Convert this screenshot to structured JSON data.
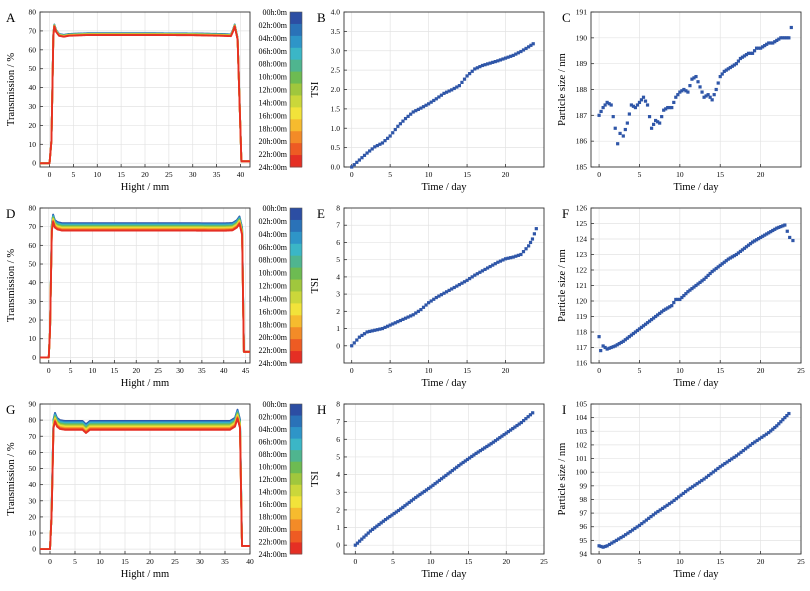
{
  "figure": {
    "panels": [
      "A",
      "B",
      "C",
      "D",
      "E",
      "F",
      "G",
      "H",
      "I"
    ],
    "colorbar_labels": [
      "00h:0m",
      "02h:00m",
      "04h:00m",
      "06h:00m",
      "08h:00m",
      "10h:00m",
      "12h:00m",
      "14h:00m",
      "16h:00m",
      "18h:00m",
      "20h:00m",
      "22h:00m",
      "24h:00m"
    ],
    "colorbar_colors": [
      "#2c4ea3",
      "#2a72b8",
      "#2e95c8",
      "#3bb6c6",
      "#4fb58f",
      "#6dbb52",
      "#a0c73d",
      "#cbd73a",
      "#f2e33a",
      "#f6bb2e",
      "#f38b27",
      "#ee5b23",
      "#e52f24"
    ]
  },
  "chart_data": [
    {
      "panel": "A",
      "type": "line",
      "xlabel": "Hight / mm",
      "ylabel": "Transmission / %",
      "xlim": [
        -2,
        42
      ],
      "ylim": [
        -2,
        80
      ],
      "xticks": [
        0,
        5,
        10,
        15,
        20,
        25,
        30,
        35,
        40
      ],
      "yticks": [
        0,
        10,
        20,
        30,
        40,
        50,
        60,
        70,
        80
      ],
      "profile": {
        "x": [
          0,
          0.4,
          0.8,
          1.0,
          1.4,
          2,
          3,
          4,
          8,
          15,
          22,
          30,
          36,
          38,
          38.4,
          38.8,
          39.4,
          40.2,
          42
        ],
        "y": [
          0,
          12,
          68,
          73,
          70,
          68,
          67.5,
          68,
          68.4,
          68.4,
          68.4,
          68.3,
          68,
          67.8,
          70,
          73,
          66,
          1,
          1
        ]
      },
      "series": [
        {
          "name": "00h:0m",
          "offset": 0.4
        },
        {
          "name": "24h:00m",
          "offset": -0.6
        }
      ]
    },
    {
      "panel": "B",
      "type": "scatter",
      "xlabel": "Time / day",
      "ylabel": "TSI",
      "xlim": [
        -1,
        25
      ],
      "ylim": [
        0,
        4
      ],
      "xticks": [
        0,
        5,
        10,
        15,
        20
      ],
      "yticks": [
        0,
        0.5,
        1.0,
        1.5,
        2.0,
        2.5,
        3.0,
        3.5,
        4.0
      ],
      "x": [
        0,
        1,
        2,
        3,
        4,
        5,
        6,
        7,
        8,
        9,
        10,
        11,
        12,
        13,
        14,
        15,
        16,
        17,
        18,
        19,
        20,
        21,
        22,
        23,
        23.6
      ],
      "y": [
        0,
        0.18,
        0.36,
        0.52,
        0.62,
        0.8,
        1.05,
        1.25,
        1.42,
        1.52,
        1.63,
        1.76,
        1.9,
        1.99,
        2.1,
        2.35,
        2.53,
        2.62,
        2.68,
        2.74,
        2.81,
        2.88,
        2.98,
        3.1,
        3.18
      ]
    },
    {
      "panel": "C",
      "type": "scatter",
      "xlabel": "Time / day",
      "ylabel": "Particle size / nm",
      "xlim": [
        -1,
        25
      ],
      "ylim": [
        185,
        191
      ],
      "xticks": [
        0,
        5,
        10,
        15,
        20
      ],
      "yticks": [
        185,
        186,
        187,
        188,
        189,
        190,
        191
      ],
      "x": [
        0,
        0.5,
        1,
        1.5,
        2,
        2.3,
        2.6,
        3,
        3.5,
        4,
        4.5,
        5,
        5.5,
        6,
        6.5,
        7,
        7.5,
        8,
        8.5,
        9,
        9.5,
        10,
        10.5,
        11,
        11.5,
        12,
        12.5,
        13,
        13.5,
        14,
        14.5,
        15,
        15.5,
        16,
        16.5,
        17,
        17.5,
        18,
        18.5,
        19,
        19.5,
        20,
        20.5,
        21,
        21.5,
        22,
        22.5,
        23,
        23.5,
        23.8
      ],
      "y": [
        187.0,
        187.3,
        187.5,
        187.4,
        186.5,
        185.9,
        186.3,
        186.2,
        186.7,
        187.4,
        187.3,
        187.5,
        187.7,
        187.4,
        186.5,
        186.8,
        186.7,
        187.2,
        187.3,
        187.3,
        187.7,
        187.9,
        188.0,
        187.9,
        188.4,
        188.5,
        188.1,
        187.7,
        187.8,
        187.6,
        188.0,
        188.5,
        188.7,
        188.8,
        188.9,
        189.0,
        189.2,
        189.3,
        189.4,
        189.4,
        189.6,
        189.6,
        189.7,
        189.8,
        189.8,
        189.9,
        190.0,
        190.0,
        190.0,
        190.4
      ]
    },
    {
      "panel": "D",
      "type": "line",
      "xlabel": "Hight / mm",
      "ylabel": "Transmission / %",
      "xlim": [
        -2,
        46
      ],
      "ylim": [
        -3,
        80
      ],
      "xticks": [
        0,
        5,
        10,
        15,
        20,
        25,
        30,
        35,
        40,
        45
      ],
      "yticks": [
        0,
        10,
        20,
        30,
        40,
        50,
        60,
        70,
        80
      ],
      "profile": {
        "x": [
          0,
          0.3,
          0.7,
          1.0,
          1.4,
          2,
          3,
          5,
          10,
          20,
          30,
          40,
          42,
          43,
          43.6,
          44.2,
          44.6,
          46
        ],
        "y": [
          0,
          15,
          70,
          75,
          72,
          71,
          70.4,
          70.4,
          70.4,
          70.4,
          70.4,
          70.3,
          70.5,
          72,
          74,
          68,
          3,
          3
        ]
      },
      "series": [
        {
          "name": "00h:0m",
          "offset": 1.5
        },
        {
          "name": "24h:00m",
          "offset": -2.5
        }
      ]
    },
    {
      "panel": "E",
      "type": "scatter",
      "xlabel": "Time / day",
      "ylabel": "TSI",
      "xlim": [
        -1,
        25
      ],
      "ylim": [
        -1,
        8
      ],
      "xticks": [
        0,
        5,
        10,
        15,
        20
      ],
      "yticks": [
        0,
        1,
        2,
        3,
        4,
        5,
        6,
        7,
        8
      ],
      "x": [
        0,
        1,
        2,
        3,
        4,
        5,
        6,
        7,
        8,
        9,
        10,
        11,
        12,
        13,
        14,
        15,
        16,
        17,
        18,
        19,
        20,
        21,
        22,
        23,
        23.5,
        24
      ],
      "y": [
        0,
        0.5,
        0.8,
        0.9,
        1.0,
        1.2,
        1.4,
        1.6,
        1.8,
        2.1,
        2.5,
        2.8,
        3.05,
        3.3,
        3.55,
        3.8,
        4.1,
        4.35,
        4.6,
        4.85,
        5.05,
        5.15,
        5.3,
        5.8,
        6.2,
        6.8
      ]
    },
    {
      "panel": "F",
      "type": "scatter",
      "xlabel": "Time / day",
      "ylabel": "Particle size / nm",
      "xlim": [
        -1,
        25
      ],
      "ylim": [
        116,
        126
      ],
      "xticks": [
        0,
        5,
        10,
        15,
        20,
        25
      ],
      "yticks": [
        116,
        117,
        118,
        119,
        120,
        121,
        122,
        123,
        124,
        125,
        126
      ],
      "x": [
        0,
        0.2,
        0.5,
        1,
        2,
        3,
        4,
        5,
        6,
        7,
        8,
        9,
        9.5,
        10,
        11,
        12,
        13,
        14,
        15,
        16,
        17,
        18,
        19,
        20,
        21,
        22,
        23,
        23.3,
        23.6,
        24
      ],
      "y": [
        117.7,
        116.8,
        117.1,
        116.9,
        117.1,
        117.4,
        117.8,
        118.2,
        118.6,
        119.0,
        119.4,
        119.7,
        120.1,
        120.1,
        120.6,
        121.0,
        121.4,
        121.9,
        122.3,
        122.7,
        123.0,
        123.4,
        123.8,
        124.1,
        124.4,
        124.7,
        124.9,
        124.5,
        124.1,
        123.9
      ]
    },
    {
      "panel": "G",
      "type": "line",
      "xlabel": "Hight / mm",
      "ylabel": "Transmission / %",
      "xlim": [
        -2,
        40
      ],
      "ylim": [
        -3,
        90
      ],
      "xticks": [
        0,
        5,
        10,
        15,
        20,
        25,
        30,
        35,
        40
      ],
      "yticks": [
        0,
        10,
        20,
        30,
        40,
        50,
        60,
        70,
        80,
        90
      ],
      "profile": {
        "x": [
          0,
          0.3,
          0.7,
          1.0,
          1.4,
          2,
          3,
          5,
          6.5,
          7.2,
          8,
          9,
          15,
          25,
          35,
          36,
          37,
          37.5,
          38,
          38.4,
          40
        ],
        "y": [
          0,
          20,
          78,
          82,
          79,
          77.5,
          77,
          77,
          77,
          75,
          77,
          77,
          77,
          77,
          77,
          77,
          79,
          84,
          78,
          2,
          2
        ]
      },
      "series": [
        {
          "name": "00h:0m",
          "offset": 2.5
        },
        {
          "name": "24h:00m",
          "offset": -3
        }
      ]
    },
    {
      "panel": "H",
      "type": "scatter",
      "xlabel": "Time / day",
      "ylabel": "TSI",
      "xlim": [
        -1.5,
        25
      ],
      "ylim": [
        -0.5,
        8
      ],
      "xticks": [
        0,
        5,
        10,
        15,
        20,
        25
      ],
      "yticks": [
        0,
        1,
        2,
        3,
        4,
        5,
        6,
        7,
        8
      ],
      "x": [
        0,
        2,
        4,
        6,
        8,
        10,
        12,
        14,
        16,
        18,
        20,
        22,
        23.5
      ],
      "y": [
        0,
        0.8,
        1.45,
        2.05,
        2.7,
        3.3,
        3.95,
        4.6,
        5.2,
        5.75,
        6.35,
        6.95,
        7.5
      ]
    },
    {
      "panel": "I",
      "type": "scatter",
      "xlabel": "Time / day",
      "ylabel": "Particle size / nm",
      "xlim": [
        -1,
        25
      ],
      "ylim": [
        94,
        105
      ],
      "xticks": [
        0,
        5,
        10,
        15,
        20,
        25
      ],
      "yticks": [
        94,
        95,
        96,
        97,
        98,
        99,
        100,
        101,
        102,
        103,
        104,
        105
      ],
      "x": [
        0,
        0.5,
        1,
        3,
        5,
        7,
        9,
        11,
        13,
        15,
        17,
        19,
        21,
        22,
        23,
        23.5
      ],
      "y": [
        94.6,
        94.5,
        94.6,
        95.3,
        96.1,
        97.0,
        97.8,
        98.7,
        99.5,
        100.4,
        101.2,
        102.1,
        102.9,
        103.4,
        104.0,
        104.3
      ]
    }
  ]
}
